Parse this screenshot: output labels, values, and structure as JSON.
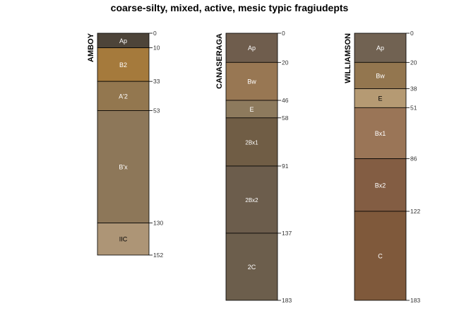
{
  "title": "coarse-silty, mixed, active, mesic typic fragiudepts",
  "depth_scale_max": 183,
  "profiles": [
    {
      "name": "AMBOY",
      "horizons": [
        {
          "label": "Ap",
          "top": 0,
          "bottom": 10,
          "color": "#4d4439",
          "text_color": "#ffffff"
        },
        {
          "label": "B2",
          "top": 10,
          "bottom": 33,
          "color": "#a57a3c",
          "text_color": "#ffffff"
        },
        {
          "label": "A'2",
          "top": 33,
          "bottom": 53,
          "color": "#93774f",
          "text_color": "#ffffff"
        },
        {
          "label": "B'x",
          "top": 53,
          "bottom": 130,
          "color": "#8d7759",
          "text_color": "#ffffff"
        },
        {
          "label": "IIC",
          "top": 130,
          "bottom": 152,
          "color": "#ad9576",
          "text_color": "#000000"
        }
      ],
      "depth_labels": [
        "0",
        "10",
        "33",
        "53",
        "130",
        "152"
      ]
    },
    {
      "name": "CANASERAGA",
      "horizons": [
        {
          "label": "Ap",
          "top": 0,
          "bottom": 20,
          "color": "#6f5d4d",
          "text_color": "#ffffff"
        },
        {
          "label": "Bw",
          "top": 20,
          "bottom": 46,
          "color": "#987753",
          "text_color": "#ffffff"
        },
        {
          "label": "E",
          "top": 46,
          "bottom": 58,
          "color": "#8d7a5d",
          "text_color": "#ffffff"
        },
        {
          "label": "2Bx1",
          "top": 58,
          "bottom": 91,
          "color": "#705d45",
          "text_color": "#ffffff"
        },
        {
          "label": "2Bx2",
          "top": 91,
          "bottom": 137,
          "color": "#6c5d4c",
          "text_color": "#ffffff"
        },
        {
          "label": "2C",
          "top": 137,
          "bottom": 183,
          "color": "#6c5e4c",
          "text_color": "#ffffff"
        }
      ],
      "depth_labels": [
        "0",
        "20",
        "46",
        "58",
        "91",
        "137",
        "183"
      ]
    },
    {
      "name": "WILLIAMSON",
      "horizons": [
        {
          "label": "Ap",
          "top": 0,
          "bottom": 20,
          "color": "#716252",
          "text_color": "#ffffff"
        },
        {
          "label": "Bw",
          "top": 20,
          "bottom": 38,
          "color": "#93764f",
          "text_color": "#ffffff"
        },
        {
          "label": "E",
          "top": 38,
          "bottom": 51,
          "color": "#b59a73",
          "text_color": "#000000"
        },
        {
          "label": "Bx1",
          "top": 51,
          "bottom": 86,
          "color": "#9a7557",
          "text_color": "#ffffff"
        },
        {
          "label": "Bx2",
          "top": 86,
          "bottom": 122,
          "color": "#835d43",
          "text_color": "#ffffff"
        },
        {
          "label": "C",
          "top": 122,
          "bottom": 183,
          "color": "#7f593b",
          "text_color": "#ffffff"
        }
      ],
      "depth_labels": [
        "0",
        "20",
        "38",
        "51",
        "86",
        "122",
        "183"
      ]
    }
  ]
}
